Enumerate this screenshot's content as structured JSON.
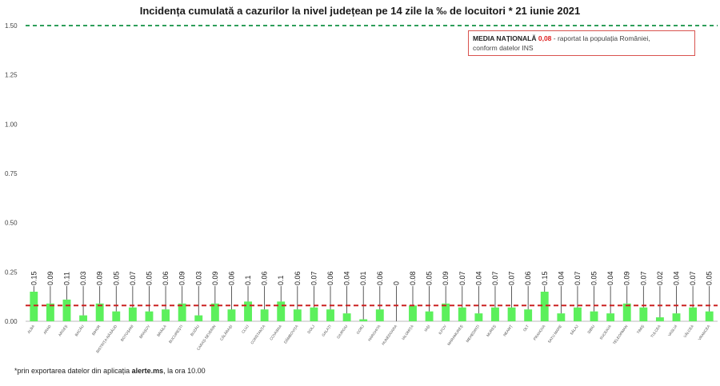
{
  "chart_data": {
    "type": "bar",
    "title": "Incidența cumulată a cazurilor la nivel județean pe 14 zile la ‰ de locuitori *  21 iunie 2021",
    "categories": [
      "ALBA",
      "ARAD",
      "ARGEȘ",
      "BACĂU",
      "BIHOR",
      "BISTRIȚA-NĂSĂUD",
      "BOTOȘANI",
      "BRAȘOV",
      "BRĂILA",
      "BUCUREȘTI",
      "BUZĂU",
      "CARAȘ-SEVERIN",
      "CĂLĂRAȘI",
      "CLUJ",
      "CONSTANȚA",
      "COVASNA",
      "DÂMBOVIȚA",
      "DOLJ",
      "GALAȚI",
      "GIURGIU",
      "GORJ",
      "HARGHITA",
      "HUNEDOARA",
      "IALOMIȚA",
      "IAȘI",
      "ILFOV",
      "MARAMUREȘ",
      "MEHEDINȚI",
      "MUREȘ",
      "NEAMȚ",
      "OLT",
      "PRAHOVA",
      "SATU MARE",
      "SĂLAJ",
      "SIBIU",
      "SUCEAVA",
      "TELEORMAN",
      "TIMIȘ",
      "TULCEA",
      "VASLUI",
      "VÂLCEA",
      "VRANCEA"
    ],
    "values": [
      0.15,
      0.09,
      0.11,
      0.03,
      0.09,
      0.05,
      0.07,
      0.05,
      0.06,
      0.09,
      0.03,
      0.09,
      0.06,
      0.1,
      0.06,
      0.1,
      0.06,
      0.07,
      0.06,
      0.04,
      0.01,
      0.06,
      0,
      0.08,
      0.05,
      0.09,
      0.07,
      0.04,
      0.07,
      0.07,
      0.06,
      0.15,
      0.04,
      0.07,
      0.05,
      0.04,
      0.09,
      0.07,
      0.02,
      0.04,
      0.07,
      0.05
    ],
    "data_labels": [
      "0.15",
      "0.09",
      "0.11",
      "0.03",
      "0.09",
      "0.05",
      "0.07",
      "0.05",
      "0.06",
      "0.09",
      "0.03",
      "0.09",
      "0.06",
      "0.1",
      "0.06",
      "0.1",
      "0.06",
      "0.07",
      "0.06",
      "0.04",
      "0.01",
      "0.06",
      "0",
      "0.08",
      "0.05",
      "0.09",
      "0.07",
      "0.04",
      "0.07",
      "0.07",
      "0.06",
      "0.15",
      "0.04",
      "0.07",
      "0.05",
      "0.04",
      "0.09",
      "0.07",
      "0.02",
      "0.04",
      "0.07",
      "0.05"
    ],
    "yticks": [
      "0.00",
      "0.25",
      "0.50",
      "0.75",
      "1.00",
      "1.25",
      "1.50"
    ],
    "ylim": [
      0,
      1.5
    ],
    "national_average": 0.08,
    "threshold_line": 1.5,
    "bar_color": "#5cf05c",
    "average_line_color": "#cc2222",
    "threshold_line_color": "#2e9e5a",
    "grid": false
  },
  "legend": {
    "label_bold": "MEDIA NAȚIONALĂ",
    "value": "0,08",
    "text_rest": " - raportat la populația României,",
    "line2": "conform datelor INS"
  },
  "footnote": {
    "prefix": "*prin exportarea datelor din aplicația ",
    "bold": "alerte.ms",
    "suffix": ", la ora 10.00"
  }
}
